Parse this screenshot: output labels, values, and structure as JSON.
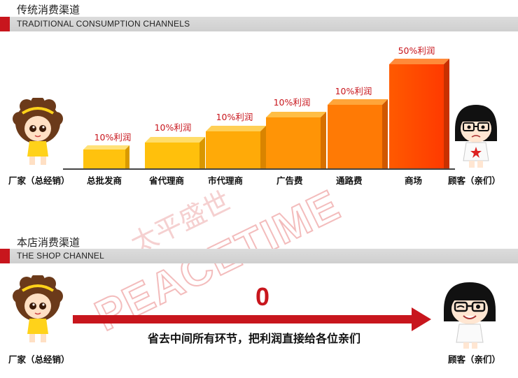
{
  "traditional": {
    "title_cn": "传统消费渠道",
    "title_en": "TRADITIONAL CONSUMPTION CHANNELS",
    "start_label": "厂家（总经销）",
    "end_label": "顾客（亲们）",
    "stages": [
      {
        "label": "总批发商",
        "markup": "10%利润",
        "level": 1
      },
      {
        "label": "省代理商",
        "markup": "10%利润",
        "level": 2
      },
      {
        "label": "市代理商",
        "markup": "10%利润",
        "level": 3
      },
      {
        "label": "广告费",
        "markup": "10%利润",
        "level": 4
      },
      {
        "label": "通路费",
        "markup": "10%利润",
        "level": 5
      },
      {
        "label": "商场",
        "markup": "50%利润",
        "level": 6
      }
    ]
  },
  "shop": {
    "title_cn": "本店消费渠道",
    "title_en": "THE SHOP CHANNEL",
    "start_label": "厂家（总经销）",
    "end_label": "顾客（亲们）",
    "zero": "0",
    "arrow_text": "省去中间所有环节，把利润直接给各位亲们"
  },
  "watermark": {
    "cn": "太平盛世",
    "en": "PEACETIME"
  },
  "colors": {
    "accent": "#c8161d",
    "header_bar": "#d4d4d4",
    "bars": [
      "#ffc20e",
      "#ffb30a",
      "#ff9a08",
      "#ff8006",
      "#ff6a04",
      "#ff4a00"
    ]
  }
}
